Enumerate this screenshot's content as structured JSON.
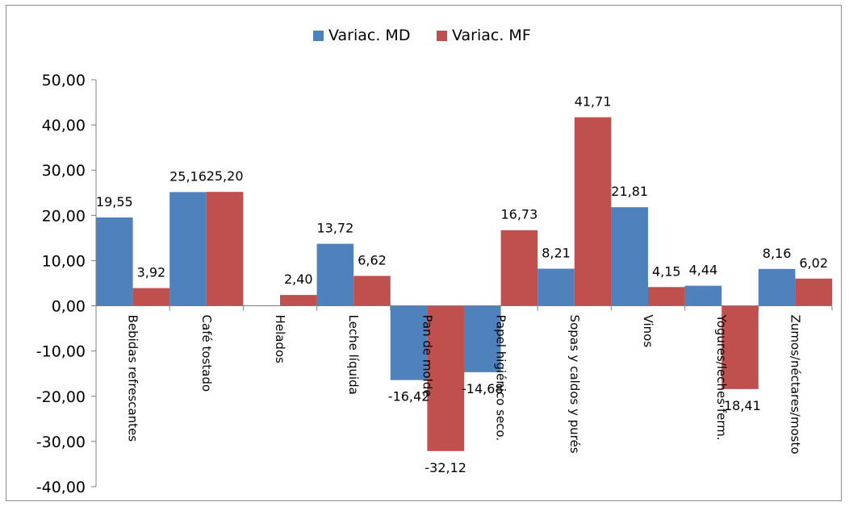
{
  "chart_data": {
    "type": "bar",
    "categories": [
      "Bebidas refrescantes",
      "Café tostado",
      "Helados",
      "Leche líquida",
      "Pan de molde",
      "Papel higiénico seco.",
      "Sopas y caldos y purés",
      "Vinos",
      "Yogures/leches ferm.",
      "Zumos/néctares/mosto"
    ],
    "series": [
      {
        "name": "Variac. MD",
        "color": "#4F81BD",
        "values": [
          19.55,
          25.16,
          null,
          13.72,
          -16.42,
          -14.68,
          8.21,
          21.81,
          4.44,
          8.16
        ],
        "labels": [
          "19,55",
          "25,16",
          "",
          "13,72",
          "-16,42",
          "-14,68",
          "8,21",
          "21,81",
          "4,44",
          "8,16"
        ]
      },
      {
        "name": "Variac. MF",
        "color": "#C0504D",
        "values": [
          3.92,
          25.2,
          2.4,
          6.62,
          -32.12,
          16.73,
          41.71,
          4.15,
          -18.41,
          6.02
        ],
        "labels": [
          "3,92",
          "25,20",
          "2,40",
          "6,62",
          "-32,12",
          "16,73",
          "41,71",
          "4,15",
          "-18,41",
          "6,02"
        ]
      }
    ],
    "yticks": [
      "50,00",
      "40,00",
      "30,00",
      "20,00",
      "10,00",
      "0,00",
      "-10,00",
      "-20,00",
      "-30,00",
      "-40,00"
    ],
    "ylim": [
      -40,
      50
    ],
    "legend_position": "top",
    "grid": false
  }
}
